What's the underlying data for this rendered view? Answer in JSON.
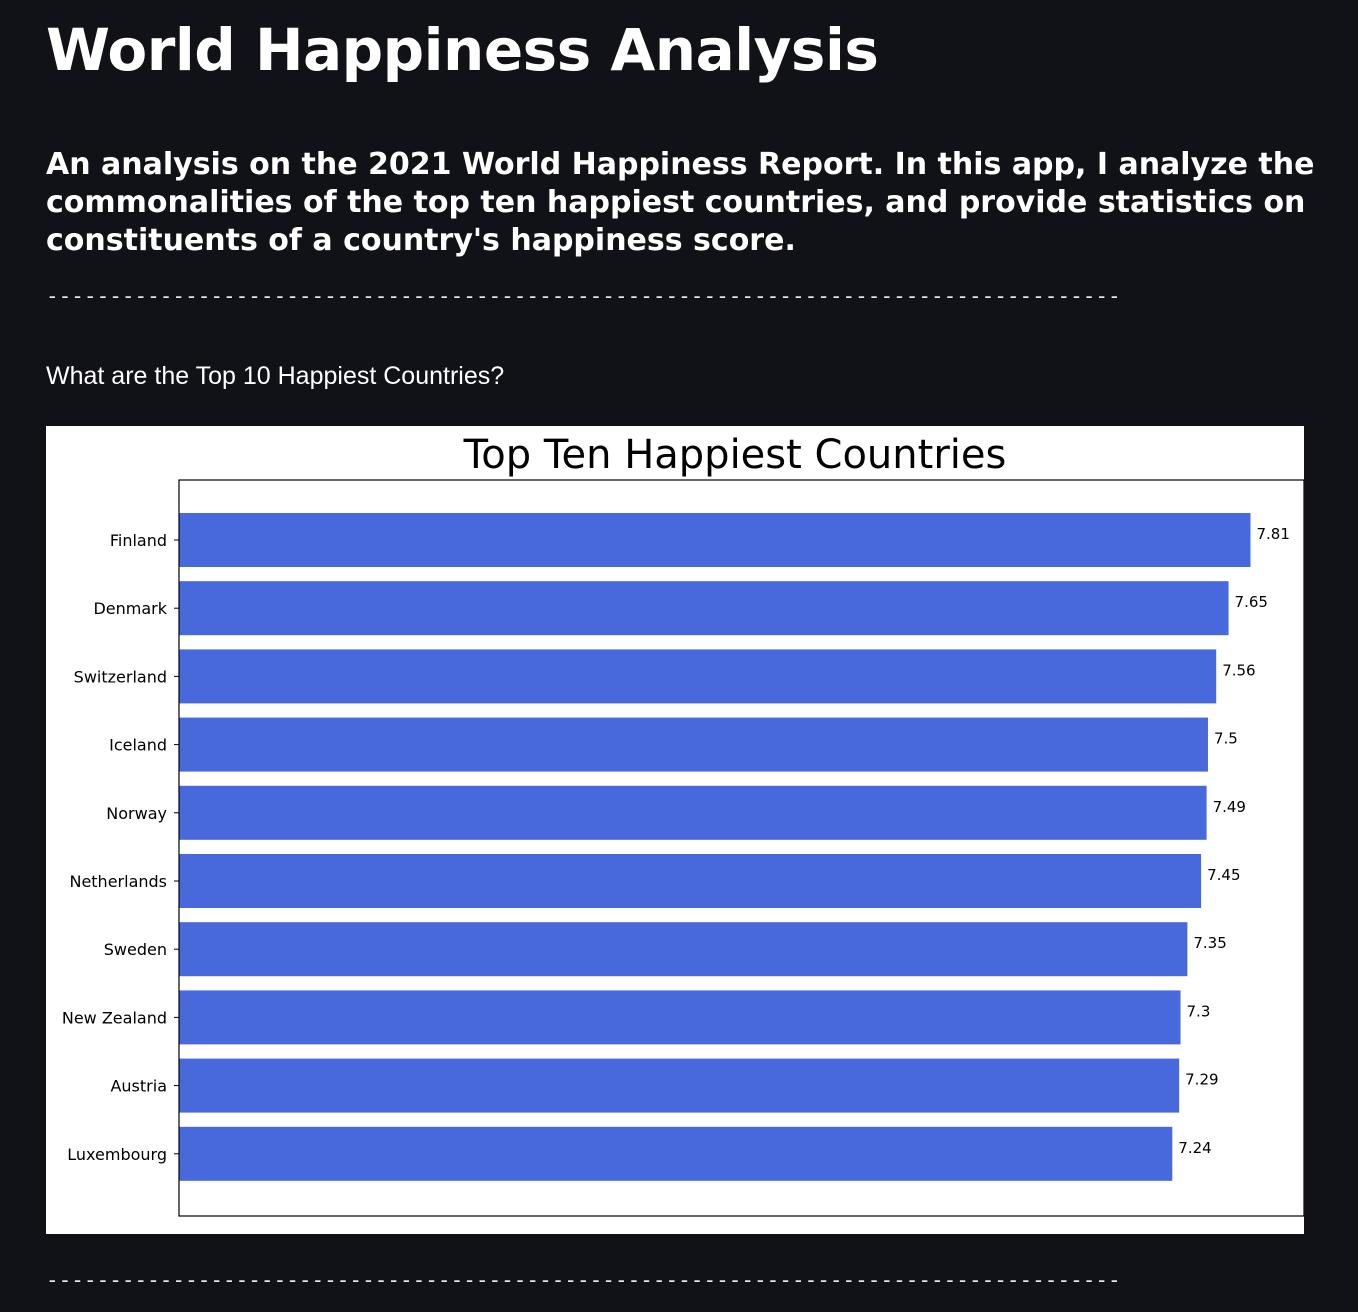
{
  "header": {
    "title": "World Happiness Analysis",
    "subtitle": "An analysis on the 2021 World Happiness Report. In this app, I analyze the commonalities of the top ten happiest countries, and provide statistics on constituents of a country's happiness score."
  },
  "divider": {
    "text": "-------------------------------------------------------------------------------------"
  },
  "section": {
    "question": "What are the Top 10 Happiest Countries?"
  },
  "colors": {
    "background": "#111217",
    "bar": "#4769DB"
  },
  "chart_data": {
    "type": "bar",
    "orientation": "horizontal",
    "title": "Top Ten Happiest Countries",
    "xlabel": "",
    "ylabel": "",
    "categories": [
      "Finland",
      "Denmark",
      "Switzerland",
      "Iceland",
      "Norway",
      "Netherlands",
      "Sweden",
      "New Zealand",
      "Austria",
      "Luxembourg"
    ],
    "values": [
      7.81,
      7.65,
      7.56,
      7.5,
      7.49,
      7.45,
      7.35,
      7.3,
      7.29,
      7.24
    ],
    "data_labels": [
      "7.81",
      "7.65",
      "7.56",
      "7.5",
      "7.49",
      "7.45",
      "7.35",
      "7.3",
      "7.29",
      "7.24"
    ],
    "xlim": [
      0,
      8.2
    ],
    "x_ticks_visible": false,
    "grid": false,
    "legend": "none",
    "bar_color": "#4769DB"
  }
}
